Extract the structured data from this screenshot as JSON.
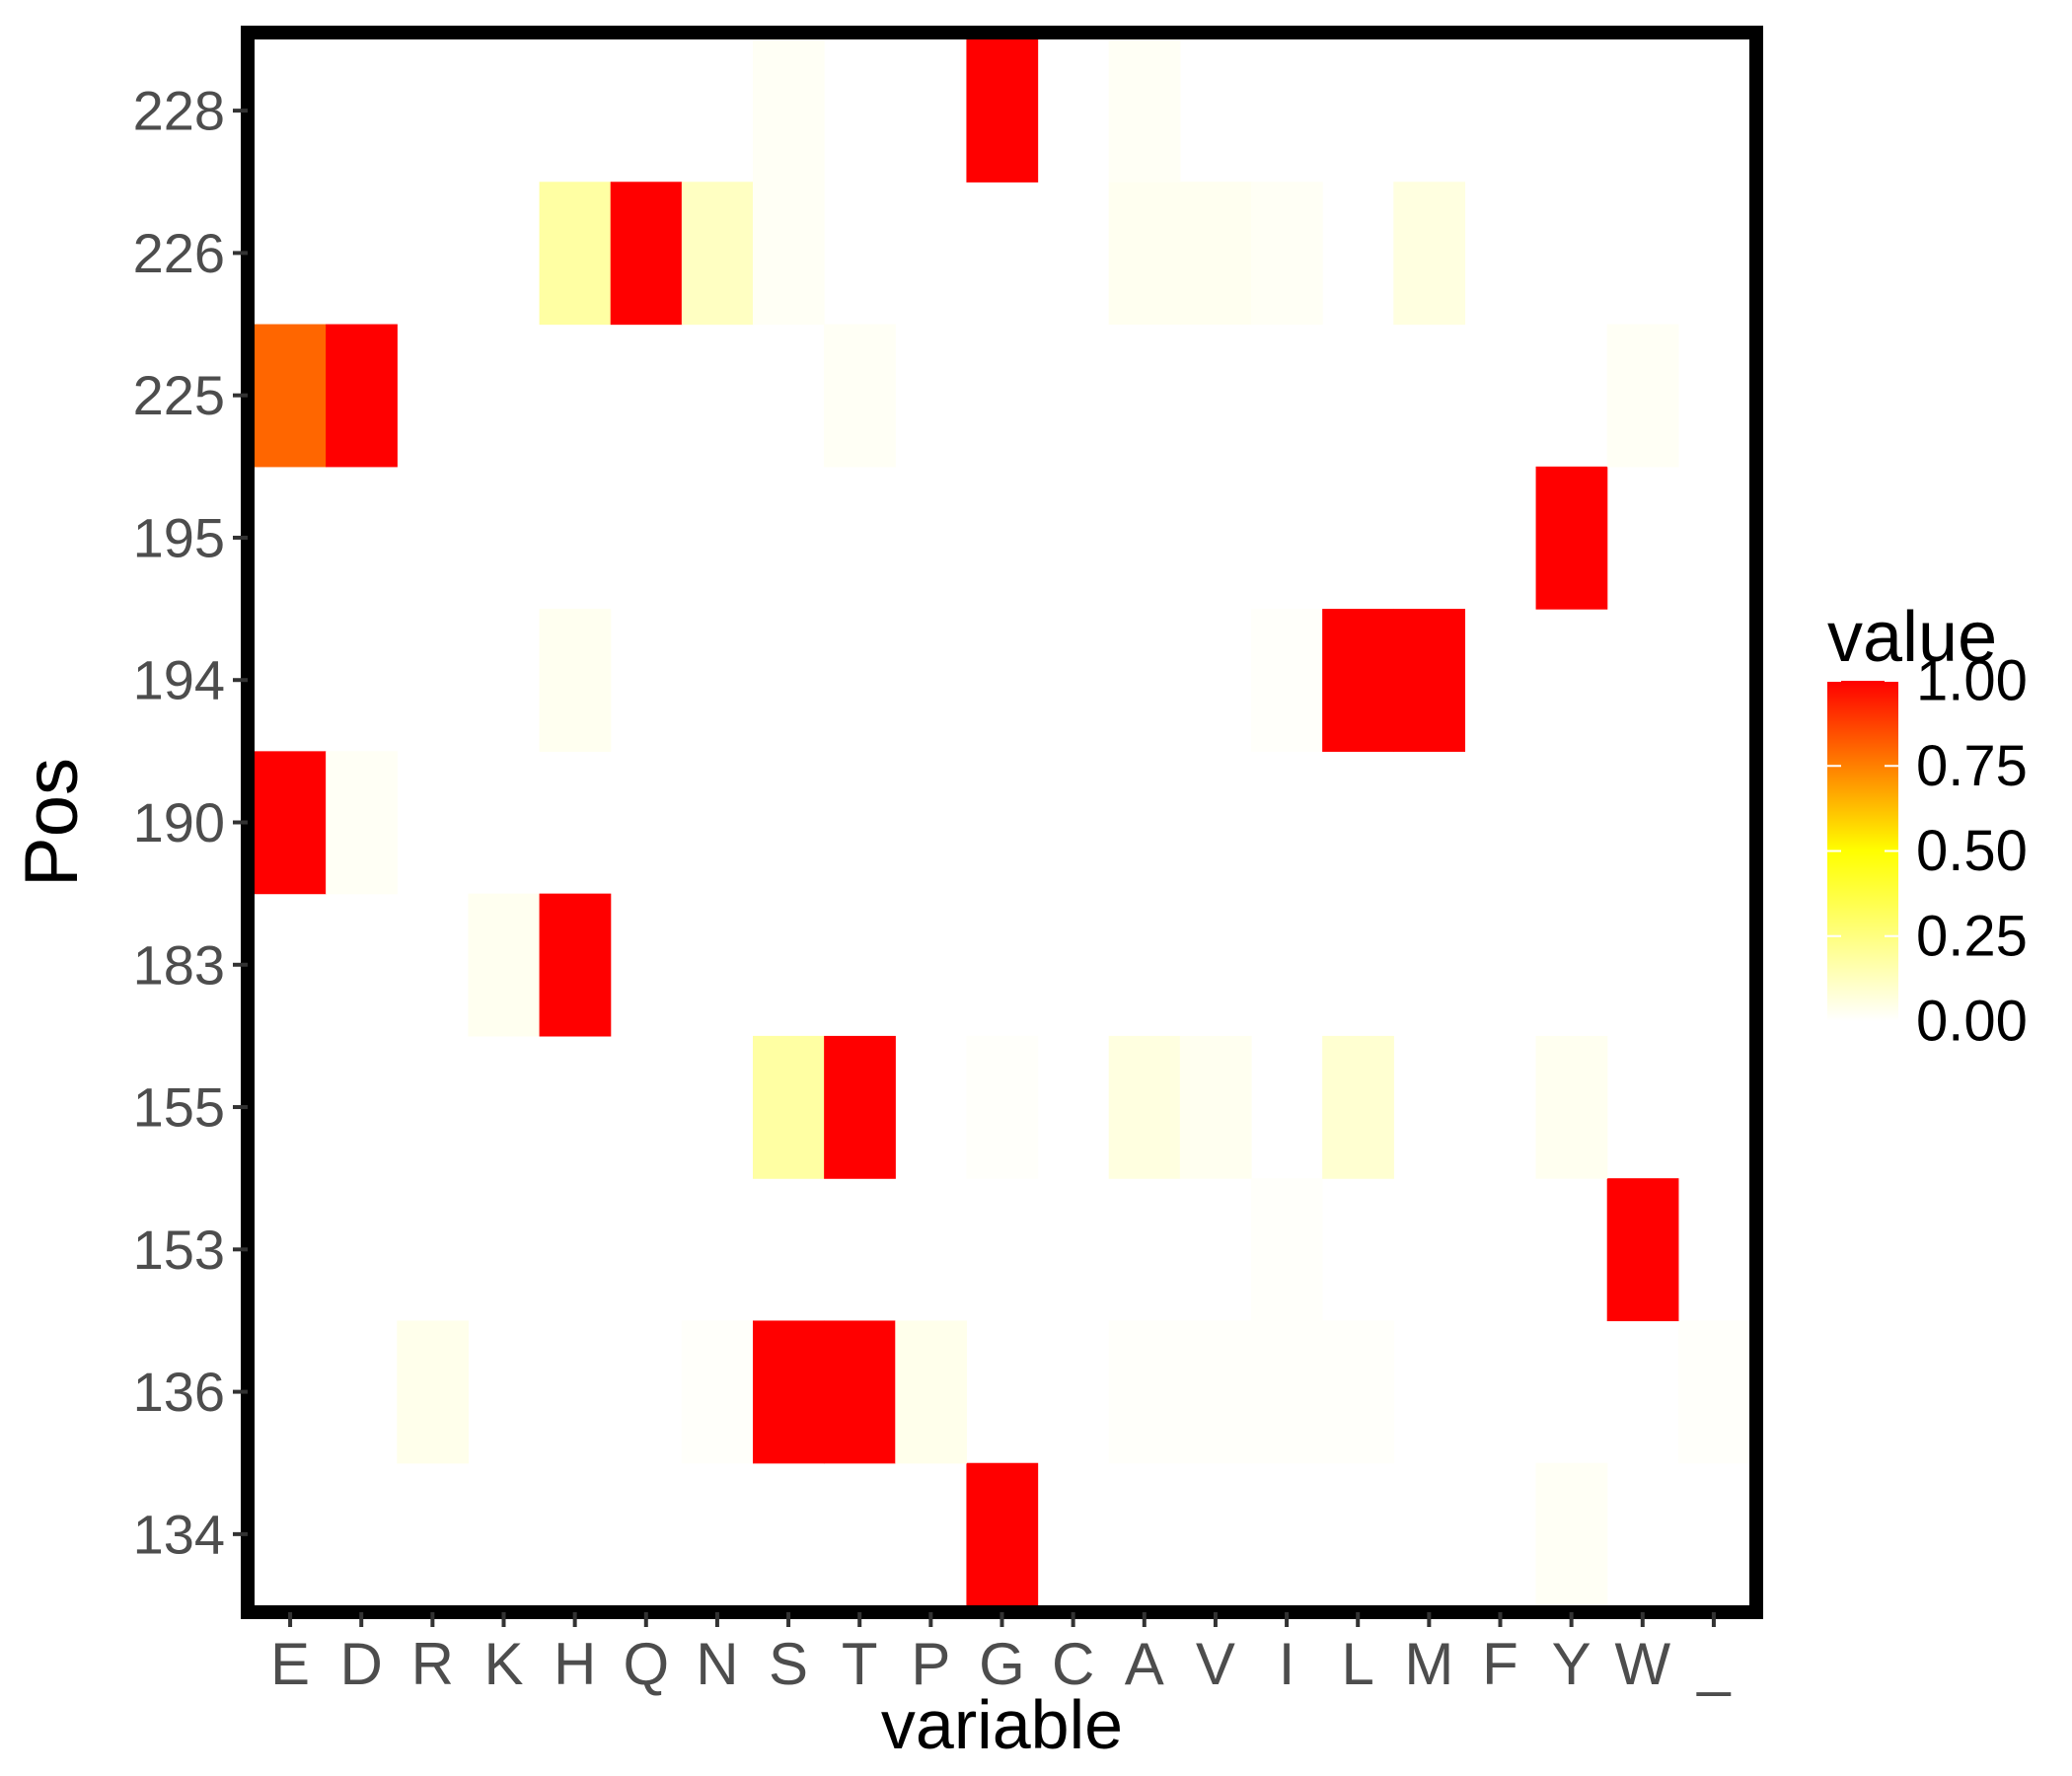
{
  "chart_data": {
    "type": "heatmap",
    "xlabel": "variable",
    "ylabel": "Pos",
    "x_categories": [
      "E",
      "D",
      "R",
      "K",
      "H",
      "Q",
      "N",
      "S",
      "T",
      "P",
      "G",
      "C",
      "A",
      "V",
      "I",
      "L",
      "M",
      "F",
      "Y",
      "W",
      "_"
    ],
    "y_categories": [
      "134",
      "136",
      "153",
      "155",
      "183",
      "190",
      "194",
      "195",
      "225",
      "226",
      "228"
    ],
    "values": [
      [
        0.0,
        0.0,
        0.0,
        0.0,
        0.0,
        0.0,
        0.0,
        0.0,
        0.0,
        0.0,
        1.0,
        0.0,
        0.0,
        0.0,
        0.0,
        0.0,
        0.0,
        0.0,
        0.02,
        0.0,
        0.0
      ],
      [
        0.0,
        0.0,
        0.04,
        0.0,
        0.0,
        0.0,
        0.01,
        1.0,
        1.0,
        0.04,
        0.0,
        0.0,
        0.01,
        0.01,
        0.01,
        0.01,
        0.0,
        0.0,
        0.0,
        0.0,
        0.01
      ],
      [
        0.0,
        0.0,
        0.0,
        0.0,
        0.0,
        0.0,
        0.0,
        0.0,
        0.0,
        0.0,
        0.0,
        0.0,
        0.0,
        0.0,
        0.01,
        0.0,
        0.0,
        0.0,
        0.0,
        1.0,
        0.0
      ],
      [
        0.0,
        0.0,
        0.0,
        0.0,
        0.0,
        0.0,
        0.0,
        0.18,
        1.0,
        0.0,
        0.01,
        0.0,
        0.06,
        0.03,
        0.0,
        0.09,
        0.0,
        0.0,
        0.03,
        0.0,
        0.0
      ],
      [
        0.0,
        0.0,
        0.0,
        0.03,
        1.0,
        0.0,
        0.0,
        0.0,
        0.0,
        0.0,
        0.0,
        0.0,
        0.0,
        0.0,
        0.0,
        0.0,
        0.0,
        0.0,
        0.0,
        0.0,
        0.0
      ],
      [
        1.0,
        0.02,
        0.0,
        0.0,
        0.0,
        0.0,
        0.0,
        0.0,
        0.0,
        0.0,
        0.0,
        0.0,
        0.0,
        0.0,
        0.0,
        0.0,
        0.0,
        0.0,
        0.0,
        0.0,
        0.0
      ],
      [
        0.0,
        0.0,
        0.0,
        0.0,
        0.03,
        0.0,
        0.0,
        0.0,
        0.0,
        0.0,
        0.0,
        0.0,
        0.0,
        0.0,
        0.01,
        1.0,
        1.0,
        0.0,
        0.0,
        0.0,
        0.0
      ],
      [
        0.0,
        0.0,
        0.0,
        0.0,
        0.0,
        0.0,
        0.0,
        0.0,
        0.0,
        0.0,
        0.0,
        0.0,
        0.0,
        0.0,
        0.0,
        0.0,
        0.0,
        0.0,
        1.0,
        0.0,
        0.0
      ],
      [
        0.8,
        1.0,
        0.0,
        0.0,
        0.0,
        0.0,
        0.0,
        0.0,
        0.02,
        0.0,
        0.0,
        0.0,
        0.0,
        0.0,
        0.0,
        0.0,
        0.0,
        0.0,
        0.0,
        0.02,
        0.0
      ],
      [
        0.0,
        0.0,
        0.0,
        0.0,
        0.18,
        1.0,
        0.12,
        0.02,
        0.0,
        0.0,
        0.0,
        0.0,
        0.03,
        0.03,
        0.02,
        0.0,
        0.06,
        0.0,
        0.0,
        0.0,
        0.0
      ],
      [
        0.0,
        0.0,
        0.0,
        0.0,
        0.0,
        0.0,
        0.0,
        0.02,
        0.0,
        0.0,
        1.0,
        0.0,
        0.02,
        0.0,
        0.0,
        0.0,
        0.0,
        0.0,
        0.0,
        0.0,
        0.0
      ]
    ],
    "color_scale": {
      "low": "#ffffff",
      "mid": "#ffff00",
      "high": "#ff0000",
      "range": [
        0,
        1
      ]
    },
    "legend": {
      "title": "value",
      "position": "right",
      "tick_values": [
        1.0,
        0.75,
        0.5,
        0.25,
        0.0
      ],
      "tick_labels": [
        "1.00",
        "0.75",
        "0.50",
        "0.25",
        "0.00"
      ]
    },
    "grid": false,
    "panel_border_color": "#000000"
  }
}
